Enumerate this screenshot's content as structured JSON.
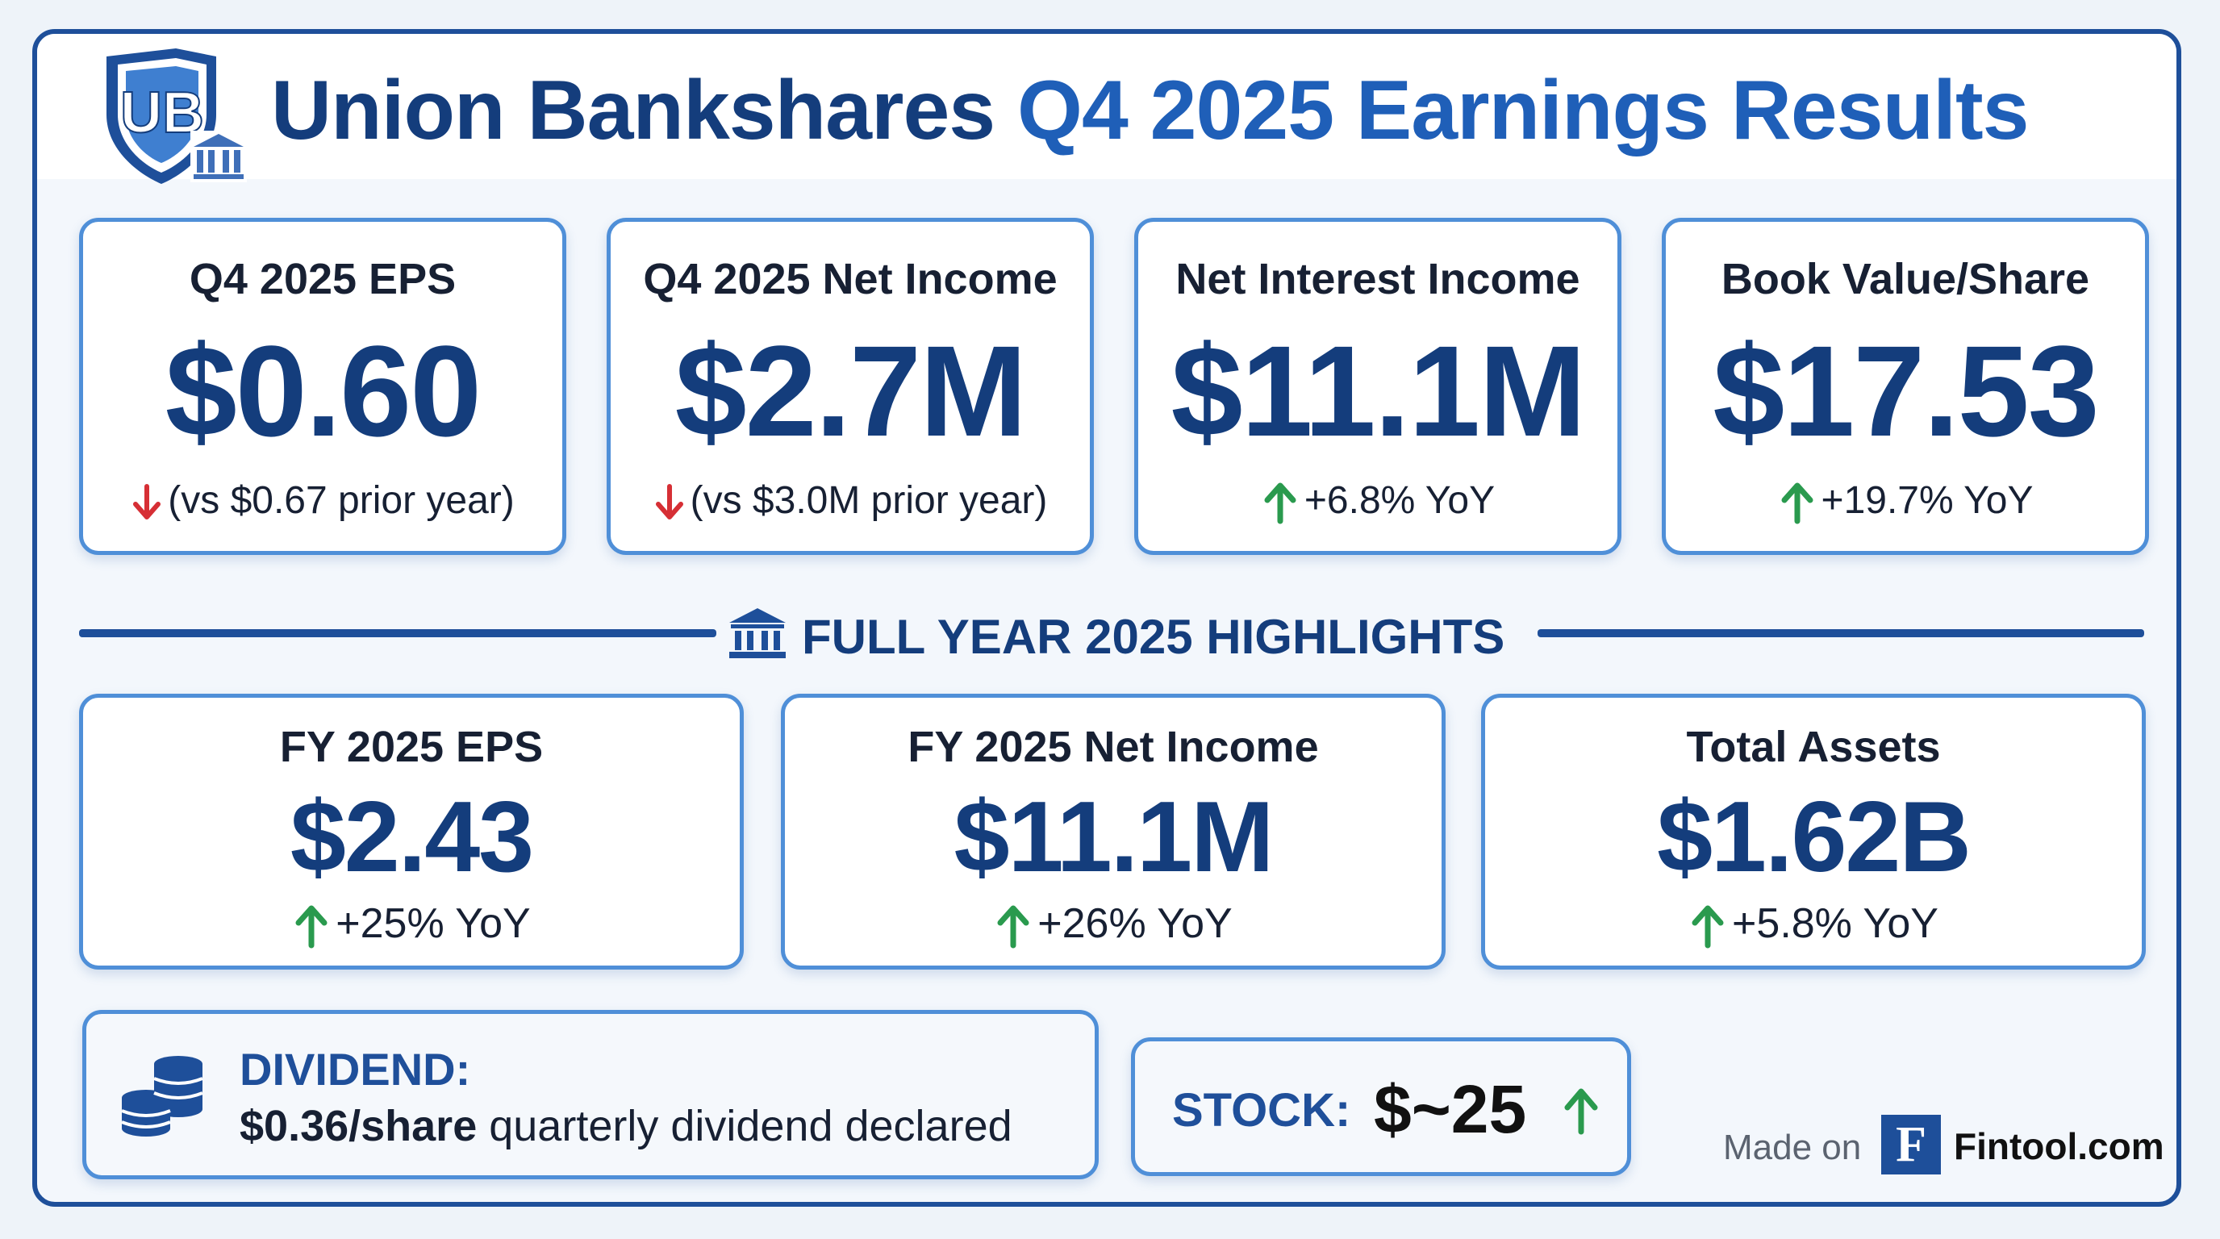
{
  "header": {
    "title_part1": "Union Bankshares ",
    "title_part2": "Q4 2025 Earnings Results",
    "logo_letters": "UB"
  },
  "colors": {
    "navy": "#143d7c",
    "accent_blue": "#1f5fb8",
    "card_border": "#4f8fd8",
    "up_green": "#2a9a4e",
    "down_red": "#d62f35"
  },
  "q4_metrics": [
    {
      "label": "Q4 2025 EPS",
      "value": "$0.60",
      "delta": "(vs $0.67 prior year)",
      "direction": "down",
      "icon": "arrow-down-icon"
    },
    {
      "label": "Q4 2025 Net Income",
      "value": "$2.7M",
      "delta": "(vs $3.0M prior year)",
      "direction": "down",
      "icon": "arrow-down-icon"
    },
    {
      "label": "Net Interest Income",
      "value": "$11.1M",
      "delta": "+6.8% YoY",
      "direction": "up",
      "icon": "arrow-up-icon"
    },
    {
      "label": "Book Value/Share",
      "value": "$17.53",
      "delta": "+19.7% YoY",
      "direction": "up",
      "icon": "arrow-up-icon"
    }
  ],
  "full_year": {
    "heading": "FULL YEAR 2025 HIGHLIGHTS",
    "icon": "bank-icon",
    "metrics": [
      {
        "label": "FY 2025 EPS",
        "value": "$2.43",
        "delta": "+25% YoY",
        "direction": "up"
      },
      {
        "label": "FY 2025 Net Income",
        "value": "$11.1M",
        "delta": "+26% YoY",
        "direction": "up"
      },
      {
        "label": "Total Assets",
        "value": "$1.62B",
        "delta": "+5.8% YoY",
        "direction": "up"
      }
    ]
  },
  "dividend": {
    "icon": "coins-icon",
    "heading": "DIVIDEND:",
    "amount": "$0.36/share",
    "text": " quarterly dividend declared"
  },
  "stock": {
    "label": "STOCK:",
    "value": "$~25",
    "direction": "up"
  },
  "footer": {
    "made_on": "Made on",
    "logo_letter": "F",
    "brand": "Fintool.com"
  }
}
